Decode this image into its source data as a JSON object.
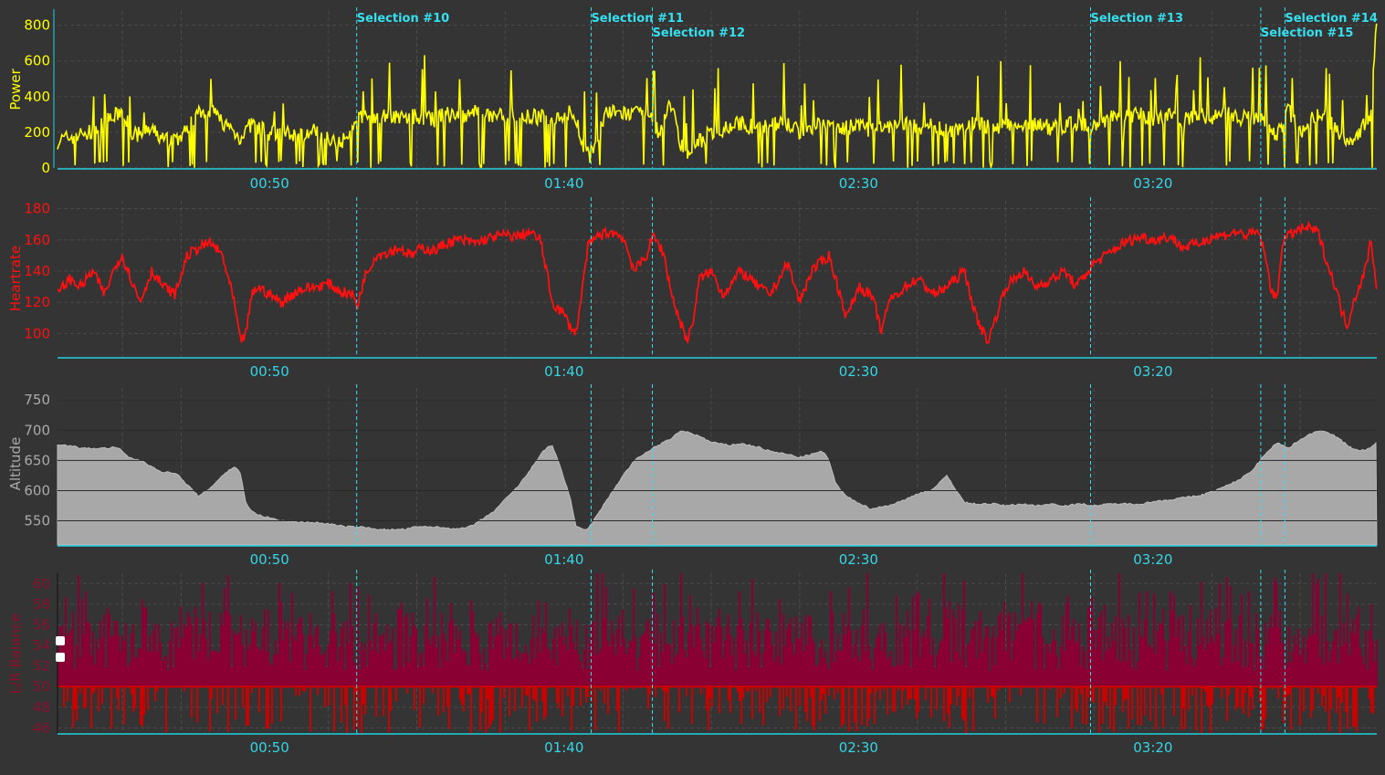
{
  "colors": {
    "background": "#343434",
    "axis": "#20d0e0",
    "selection": "#34e0f0",
    "power": "#ffff00",
    "heartrate": "#ff1010",
    "altitude": "#aaaaaa",
    "balance_upper": "#8a0033",
    "balance_lower": "#cc0000"
  },
  "x_axis": {
    "range_minutes": [
      14,
      238
    ],
    "ticks": [
      "00:50",
      "01:40",
      "02:30",
      "03:20"
    ]
  },
  "selections": [
    {
      "label": "Selection #10",
      "minute": 64.8
    },
    {
      "label": "Selection #11",
      "minute": 104.6
    },
    {
      "label": "Selection #12",
      "minute": 115.0
    },
    {
      "label": "Selection #13",
      "minute": 189.4
    },
    {
      "label": "Selection #14",
      "minute": 222.4
    },
    {
      "label": "Selection #15",
      "minute": 218.3
    }
  ],
  "chart_data": [
    {
      "type": "line",
      "title": "",
      "ylabel": "Power",
      "xlabel": "",
      "ylim": [
        0,
        880
      ],
      "yticks": [
        "0",
        "200",
        "400",
        "600",
        "800"
      ],
      "grid": true,
      "series": [
        {
          "x": [
            14,
            17,
            20,
            22,
            25,
            27,
            30,
            32,
            35,
            38,
            40,
            42,
            45,
            47,
            50,
            52,
            55,
            58,
            60,
            63,
            65,
            67,
            70,
            73,
            75,
            78,
            80,
            83,
            85,
            87,
            90,
            93,
            95,
            98,
            100,
            101,
            102,
            103,
            104,
            105,
            107,
            110,
            112,
            114,
            116,
            118,
            120,
            121,
            122,
            123,
            125,
            128,
            130,
            133,
            135,
            138,
            140,
            142,
            145,
            148,
            150,
            152,
            155,
            158,
            160,
            163,
            165,
            168,
            170,
            173,
            175,
            178,
            180,
            183,
            185,
            187,
            190,
            193,
            195,
            198,
            200,
            203,
            205,
            208,
            210,
            213,
            215,
            217,
            219,
            221,
            223,
            225,
            227,
            229,
            231,
            233,
            235,
            237,
            238
          ],
          "values": [
            150,
            180,
            200,
            250,
            320,
            180,
            210,
            160,
            170,
            320,
            330,
            260,
            170,
            250,
            190,
            200,
            180,
            210,
            170,
            150,
            280,
            290,
            300,
            280,
            290,
            270,
            300,
            280,
            310,
            290,
            300,
            280,
            290,
            270,
            300,
            310,
            280,
            150,
            90,
            100,
            310,
            305,
            300,
            310,
            200,
            380,
            120,
            90,
            110,
            150,
            200,
            230,
            250,
            220,
            260,
            240,
            200,
            230,
            260,
            220,
            240,
            210,
            230,
            250,
            220,
            240,
            210,
            230,
            250,
            220,
            240,
            230,
            250,
            220,
            240,
            250,
            230,
            280,
            290,
            300,
            280,
            290,
            270,
            280,
            290,
            300,
            280,
            290,
            260,
            170,
            320,
            200,
            280,
            300,
            220,
            150,
            200,
            300,
            870
          ]
        }
      ]
    },
    {
      "type": "line",
      "title": "",
      "ylabel": "Heartrate",
      "xlabel": "",
      "ylim": [
        85,
        185
      ],
      "yticks": [
        "100",
        "120",
        "140",
        "160",
        "180"
      ],
      "grid": true,
      "series": [
        {
          "x": [
            14,
            16,
            18,
            20,
            22,
            24,
            25,
            26,
            27,
            28,
            30,
            32,
            34,
            36,
            38,
            40,
            42,
            44,
            45,
            46,
            47,
            48,
            50,
            52,
            55,
            58,
            60,
            62,
            64,
            65,
            66,
            68,
            70,
            72,
            74,
            76,
            78,
            80,
            82,
            85,
            88,
            90,
            92,
            94,
            96,
            98,
            100,
            101,
            102,
            103,
            104,
            105,
            106,
            108,
            110,
            112,
            114,
            115,
            116,
            117,
            118,
            119,
            120,
            121,
            122,
            123,
            125,
            127,
            130,
            133,
            135,
            138,
            140,
            142,
            145,
            148,
            150,
            152,
            153,
            154,
            155,
            158,
            160,
            163,
            165,
            168,
            170,
            172,
            175,
            178,
            180,
            183,
            185,
            187,
            189,
            190,
            192,
            195,
            198,
            200,
            203,
            205,
            208,
            210,
            212,
            214,
            216,
            218,
            219,
            220,
            221,
            222,
            224,
            226,
            228,
            230,
            231,
            232,
            233,
            234,
            236,
            237,
            238
          ],
          "values": [
            125,
            135,
            130,
            140,
            125,
            145,
            150,
            140,
            130,
            120,
            140,
            130,
            125,
            150,
            155,
            158,
            150,
            120,
            95,
            100,
            125,
            130,
            125,
            120,
            128,
            130,
            132,
            127,
            125,
            118,
            135,
            150,
            152,
            155,
            150,
            155,
            153,
            158,
            160,
            158,
            162,
            163,
            162,
            165,
            160,
            120,
            112,
            105,
            100,
            125,
            155,
            160,
            163,
            165,
            162,
            140,
            150,
            162,
            158,
            150,
            130,
            115,
            105,
            95,
            110,
            135,
            140,
            125,
            140,
            130,
            125,
            145,
            120,
            140,
            150,
            110,
            130,
            125,
            115,
            100,
            120,
            130,
            135,
            125,
            130,
            140,
            110,
            95,
            130,
            140,
            130,
            135,
            140,
            130,
            140,
            145,
            150,
            158,
            162,
            160,
            162,
            155,
            158,
            162,
            163,
            165,
            163,
            165,
            150,
            130,
            120,
            160,
            165,
            168,
            165,
            140,
            130,
            115,
            105,
            120,
            140,
            160,
            130
          ]
        }
      ]
    },
    {
      "type": "area",
      "title": "",
      "ylabel": "Altitude",
      "xlabel": "",
      "ylim": [
        510,
        770
      ],
      "yticks": [
        "550",
        "600",
        "650",
        "700",
        "750"
      ],
      "grid": true,
      "series": [
        {
          "x": [
            14,
            16,
            18,
            20,
            22,
            24,
            25,
            26,
            28,
            30,
            32,
            34,
            36,
            38,
            40,
            42,
            44,
            45,
            46,
            47,
            48,
            50,
            52,
            55,
            58,
            60,
            63,
            65,
            68,
            70,
            73,
            75,
            78,
            80,
            83,
            85,
            88,
            90,
            92,
            94,
            95,
            96,
            97,
            98,
            99,
            100,
            101,
            102,
            104,
            106,
            108,
            110,
            112,
            115,
            118,
            120,
            123,
            125,
            128,
            130,
            133,
            135,
            138,
            140,
            142,
            144,
            145,
            146,
            147,
            148,
            150,
            152,
            155,
            158,
            160,
            162,
            163,
            164,
            165,
            168,
            170,
            173,
            175,
            178,
            180,
            183,
            185,
            188,
            190,
            193,
            195,
            198,
            200,
            203,
            205,
            208,
            210,
            213,
            215,
            217,
            219,
            221,
            223,
            225,
            227,
            229,
            231,
            233,
            235,
            237,
            238
          ],
          "values": [
            675,
            675,
            670,
            670,
            670,
            672,
            665,
            655,
            650,
            640,
            630,
            630,
            610,
            590,
            605,
            625,
            640,
            630,
            580,
            565,
            560,
            555,
            550,
            548,
            547,
            545,
            540,
            540,
            537,
            535,
            536,
            540,
            540,
            538,
            537,
            545,
            565,
            585,
            605,
            630,
            645,
            660,
            670,
            675,
            650,
            620,
            590,
            540,
            535,
            565,
            595,
            625,
            650,
            670,
            685,
            700,
            690,
            680,
            675,
            678,
            672,
            665,
            660,
            655,
            660,
            665,
            650,
            615,
            600,
            590,
            580,
            570,
            575,
            585,
            595,
            600,
            605,
            615,
            625,
            580,
            578,
            578,
            575,
            578,
            575,
            578,
            575,
            578,
            575,
            578,
            578,
            578,
            582,
            585,
            588,
            592,
            598,
            610,
            620,
            635,
            660,
            680,
            670,
            685,
            695,
            700,
            690,
            675,
            665,
            670,
            682
          ]
        }
      ]
    },
    {
      "type": "bar",
      "title": "",
      "ylabel": "L/R Balance",
      "xlabel": "",
      "ylim": [
        45.5,
        61
      ],
      "yticks": [
        "46",
        "48",
        "50",
        "52",
        "54",
        "56",
        "58",
        "60"
      ],
      "baseline": 50,
      "grid": true,
      "series": [
        {
          "name": "",
          "values": []
        }
      ]
    }
  ]
}
